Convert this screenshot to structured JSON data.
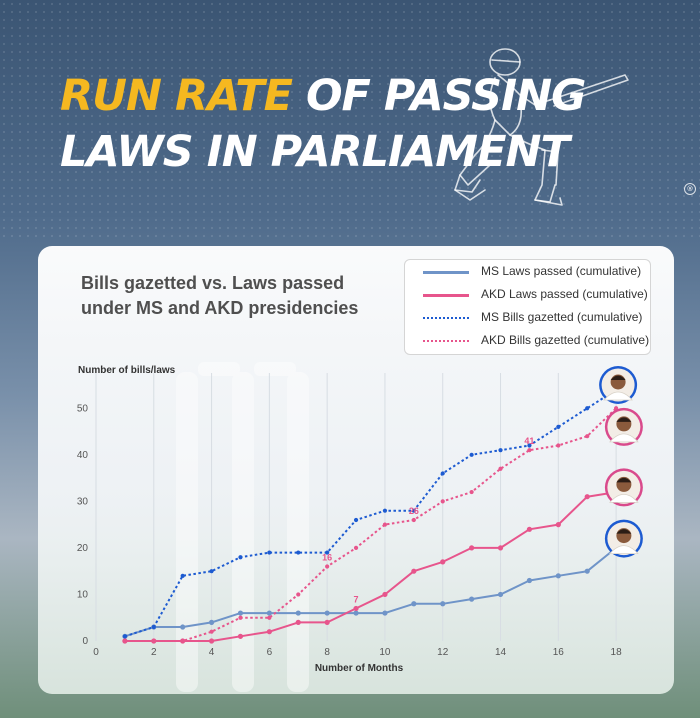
{
  "headline": {
    "highlight": "Run Rate",
    "line1_rest": " of Passing",
    "line2": "Laws in Parliament",
    "highlight_color": "#f5b820"
  },
  "chart_data": {
    "type": "line",
    "title": "Bills gazetted vs. Laws passed under MS and AKD presidencies",
    "xlabel": "Number of Months",
    "ylabel": "Number of bills/laws",
    "xlim": [
      0,
      19
    ],
    "ylim": [
      0,
      55
    ],
    "x_ticks": [
      "0",
      "2",
      "4",
      "6",
      "8",
      "10",
      "12",
      "14",
      "16",
      "18"
    ],
    "y_ticks": [
      "0",
      "10",
      "20",
      "30",
      "40",
      "50"
    ],
    "grid": "vertical",
    "legend_position": "top-right",
    "x": [
      1,
      2,
      3,
      4,
      5,
      6,
      7,
      8,
      9,
      10,
      11,
      12,
      13,
      14,
      15,
      16,
      17,
      18
    ],
    "series": [
      {
        "name": "MS Laws passed (cumulative)",
        "style": "solid",
        "color": "#6f94c8",
        "values": [
          1,
          3,
          3,
          4,
          6,
          6,
          6,
          6,
          6,
          6,
          8,
          8,
          9,
          10,
          13,
          14,
          15,
          20
        ],
        "labels": [
          {
            "x": 18,
            "y": 20,
            "text": "20"
          }
        ]
      },
      {
        "name": "AKD Laws passed (cumulative)",
        "style": "solid",
        "color": "#e7558c",
        "values": [
          0,
          0,
          0,
          0,
          1,
          2,
          4,
          4,
          7,
          10,
          15,
          17,
          20,
          20,
          24,
          25,
          31,
          32
        ],
        "labels": [
          {
            "x": 9,
            "y": 7,
            "text": "7"
          }
        ]
      },
      {
        "name": "MS Bills gazetted (cumulative)",
        "style": "dotted",
        "color": "#1d5bd1",
        "values": [
          1,
          3,
          14,
          15,
          18,
          19,
          19,
          19,
          26,
          28,
          28,
          36,
          40,
          41,
          42,
          46,
          50,
          54
        ],
        "labels": [
          {
            "x": 18,
            "y": 54,
            "text": "54"
          }
        ]
      },
      {
        "name": "AKD Bills gazetted (cumulative)",
        "style": "dotted",
        "color": "#e7558c",
        "values": [
          0,
          0,
          0,
          2,
          5,
          5,
          10,
          16,
          20,
          25,
          26,
          30,
          32,
          37,
          41,
          42,
          44,
          50
        ],
        "labels": [
          {
            "x": 8,
            "y": 16,
            "text": "16"
          },
          {
            "x": 11,
            "y": 26,
            "text": "26"
          },
          {
            "x": 15,
            "y": 41,
            "text": "41"
          }
        ]
      }
    ],
    "portraits": [
      {
        "name": "ms-portrait-top",
        "x": 18,
        "y": 55,
        "ring": "#1d5bd1"
      },
      {
        "name": "akd-portrait-top",
        "x": 18.2,
        "y": 46,
        "ring": "#d94a8c"
      },
      {
        "name": "akd-portrait-mid",
        "x": 18.2,
        "y": 33,
        "ring": "#d94a8c"
      },
      {
        "name": "ms-portrait-bottom",
        "x": 18.2,
        "y": 22,
        "ring": "#1d5bd1"
      }
    ]
  }
}
